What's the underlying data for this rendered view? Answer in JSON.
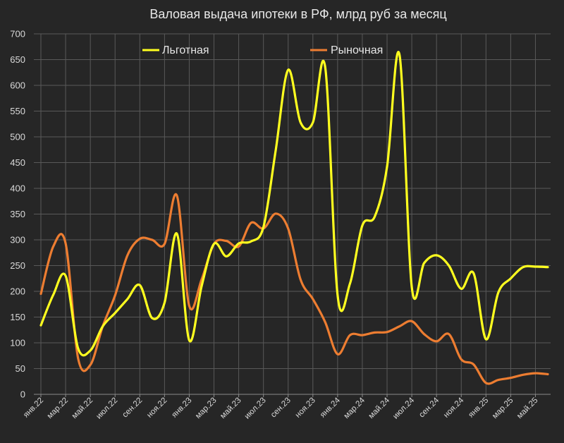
{
  "chart_data": {
    "type": "line",
    "title": "Валовая выдача ипотеки в РФ, млрд руб за месяц",
    "xlabel": "",
    "ylabel": "",
    "ylim": [
      0,
      700
    ],
    "yticks": [
      0,
      50,
      100,
      150,
      200,
      250,
      300,
      350,
      400,
      450,
      500,
      550,
      600,
      650,
      700
    ],
    "x": [
      "янв.22",
      "фев.22",
      "мар.22",
      "апр.22",
      "май.22",
      "июн.22",
      "июл.22",
      "авг.22",
      "сен.22",
      "окт.22",
      "ноя.22",
      "дек.22",
      "янв.23",
      "фев.23",
      "мар.23",
      "апр.23",
      "май.23",
      "июн.23",
      "июл.23",
      "авг.23",
      "сен.23",
      "окт.23",
      "ноя.23",
      "дек.23",
      "янв.24",
      "фев.24",
      "мар.24",
      "апр.24",
      "май.24",
      "июн.24",
      "июл.24",
      "авг.24",
      "сен.24",
      "окт.24",
      "ноя.24",
      "дек.24",
      "янв.25",
      "фев.25",
      "мар.25",
      "апр.25",
      "май.25",
      "июн.25"
    ],
    "xtick_labels": [
      "янв.22",
      "мар.22",
      "май.22",
      "июл.22",
      "сен.22",
      "ноя.22",
      "янв.23",
      "мар.23",
      "май.23",
      "июл.23",
      "сен.23",
      "ноя.23",
      "янв.24",
      "мар.24",
      "май.24",
      "июл.24",
      "сен.24",
      "ноя.24",
      "янв.25",
      "мар.25",
      "май.25"
    ],
    "grid": true,
    "legend_position": "top",
    "series": [
      {
        "name": "Льготная",
        "color": "#ffff1f",
        "values": [
          134,
          193,
          230,
          90,
          85,
          132,
          158,
          185,
          212,
          148,
          178,
          312,
          105,
          210,
          292,
          268,
          293,
          297,
          325,
          475,
          630,
          528,
          528,
          635,
          192,
          215,
          328,
          345,
          442,
          660,
          208,
          255,
          270,
          250,
          205,
          235,
          107,
          198,
          225,
          247,
          248,
          247
        ]
      },
      {
        "name": "Рыночная",
        "color": "#ed7d31",
        "values": [
          195,
          287,
          293,
          71,
          57,
          132,
          192,
          270,
          302,
          300,
          292,
          386,
          172,
          223,
          292,
          298,
          287,
          333,
          322,
          351,
          322,
          223,
          185,
          140,
          78,
          115,
          115,
          120,
          121,
          132,
          142,
          117,
          103,
          117,
          68,
          58,
          22,
          28,
          32,
          38,
          41,
          39
        ]
      }
    ]
  }
}
